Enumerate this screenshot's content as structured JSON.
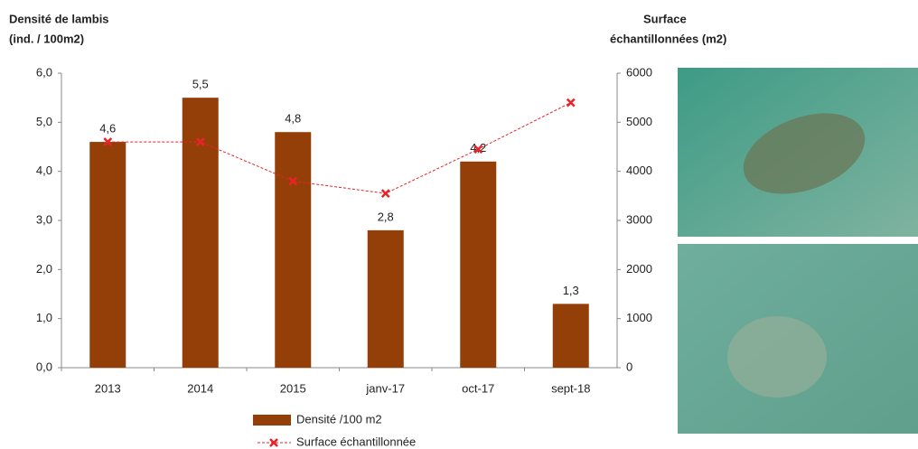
{
  "chart_data": {
    "type": "bar",
    "y_label": [
      "Densité de lambis",
      "(ind. / 100m2)"
    ],
    "y2_label": [
      "Surface",
      "échantillonnées (m2)"
    ],
    "categories": [
      "2013",
      "2014",
      "2015",
      "janv-17",
      "oct-17",
      "sept-18"
    ],
    "series": [
      {
        "name": "Densité /100 m2",
        "type": "bar",
        "color": "#953f08",
        "values": [
          4.6,
          5.5,
          4.8,
          2.8,
          4.2,
          1.3
        ],
        "value_labels": [
          "4,6",
          "5,5",
          "4,8",
          "2,8",
          "4,2",
          "1,3"
        ]
      },
      {
        "name": "Surface échantillonnée",
        "type": "line",
        "axis": "y2",
        "color": "#e8232a",
        "values": [
          4600,
          4600,
          3800,
          3550,
          4450,
          5400
        ]
      }
    ],
    "ylim": [
      0,
      6
    ],
    "yticks": [
      {
        "value": 0,
        "label": "0,0"
      },
      {
        "value": 1,
        "label": "1,0"
      },
      {
        "value": 2,
        "label": "2,0"
      },
      {
        "value": 3,
        "label": "3,0"
      },
      {
        "value": 4,
        "label": "4,0"
      },
      {
        "value": 5,
        "label": "5,0"
      },
      {
        "value": 6,
        "label": "6,0"
      }
    ],
    "y2lim": [
      0,
      6000
    ],
    "y2ticks": [
      0,
      1000,
      2000,
      3000,
      4000,
      5000,
      6000
    ]
  }
}
